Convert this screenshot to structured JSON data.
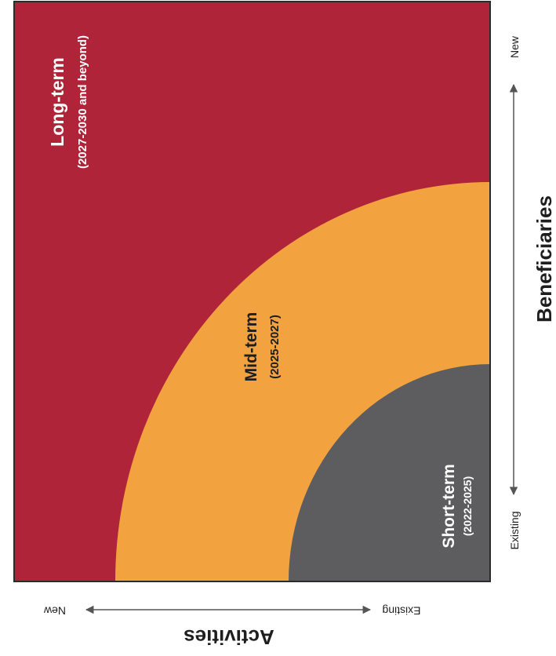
{
  "colors": {
    "long_term": "#b0243a",
    "mid_term": "#f2a23e",
    "short_term": "#5d5d5f",
    "border": "#2b2b2b",
    "text_light": "#ffffff",
    "text_dark": "#1e1e1e",
    "axis": "#555555"
  },
  "zones": {
    "long_term": {
      "title": "Long-term",
      "period": "(2027-2030 and beyond)"
    },
    "mid_term": {
      "title": "Mid-term",
      "period": "(2025-2027)"
    },
    "short_term": {
      "title": "Short-term",
      "period": "(2022-2025)"
    }
  },
  "axes": {
    "beneficiaries": {
      "title": "Beneficiaries",
      "start": "Existing",
      "end": "New"
    },
    "activities": {
      "title": "Activities",
      "start": "Existing",
      "end": "New"
    }
  }
}
